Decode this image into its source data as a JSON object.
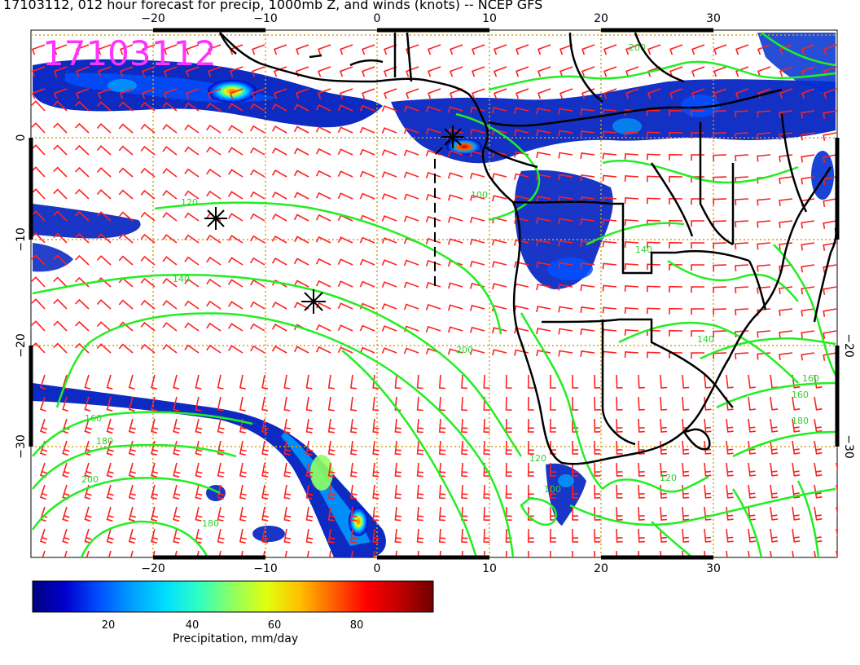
{
  "title": "17103112, 012 hour forecast for precip, 1000mb Z, and winds (knots) -- NCEP GFS",
  "stamp": "17103112",
  "map": {
    "lon_range": [
      -31,
      41
    ],
    "lat_range": [
      -40,
      9
    ],
    "lon_ticks": [
      "−20",
      "−10",
      "0",
      "10",
      "20",
      "30"
    ],
    "lat_ticks": [
      "0",
      "−10",
      "−20",
      "−30"
    ],
    "lat_ticks_right": [
      "−20",
      "−30"
    ],
    "grid_color": "#d4a017",
    "wind_barb_color": "#ff2020",
    "contour_color": "#22ee22",
    "coast_color": "#000000"
  },
  "contour_labels": [
    "120",
    "140",
    "160",
    "180",
    "200",
    "100",
    "120",
    "140",
    "160",
    "180",
    "200",
    "100",
    "120",
    "140",
    "160",
    "180",
    "200"
  ],
  "colorbar": {
    "label": "Precipitation, mm/day",
    "ticks": [
      "20",
      "40",
      "60",
      "80"
    ],
    "tick_values": [
      20,
      40,
      60,
      80
    ],
    "range": [
      0,
      100
    ],
    "colors": [
      "#00007f",
      "#0000d0",
      "#0050ff",
      "#00a0ff",
      "#00e0ff",
      "#30ffc0",
      "#90ff60",
      "#e0ff10",
      "#ffc000",
      "#ff6000",
      "#ff0000",
      "#c00000",
      "#700000"
    ]
  }
}
